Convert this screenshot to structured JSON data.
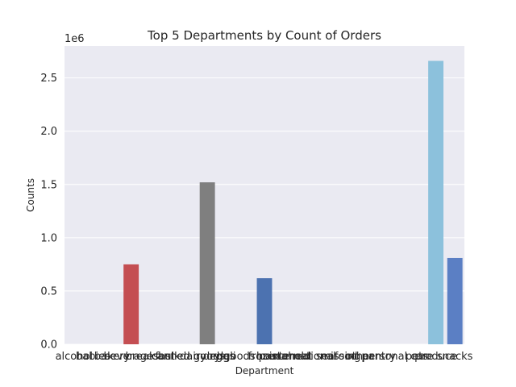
{
  "chart_data": {
    "type": "bar",
    "title": "Top 5 Departments by Count of Orders",
    "xlabel": "Department",
    "ylabel": "Counts",
    "y_multiplier": "1e6",
    "ylim": [
      0,
      2.8
    ],
    "yticks": [
      "0.0",
      "0.5",
      "1.0",
      "1.5",
      "2.0",
      "2.5"
    ],
    "grid": true,
    "categories": [
      "alcohol",
      "babies",
      "bakery",
      "beverages",
      "breakfast",
      "bulk",
      "canned goods",
      "dairy eggs",
      "deli",
      "dry goods pasta",
      "frozen",
      "household",
      "international",
      "meat seafood",
      "missing",
      "other",
      "pantry",
      "personal care",
      "pets",
      "produce",
      "snacks"
    ],
    "values": [
      0,
      0,
      0,
      0.75,
      0,
      0,
      0,
      1.52,
      0,
      0,
      0.62,
      0,
      0,
      0,
      0,
      0,
      0,
      0,
      0,
      2.66,
      0.81
    ],
    "colors": [
      "#4c72b0",
      "#dd8452",
      "#55a868",
      "#c44e52",
      "#8172b3",
      "#937860",
      "#da8bc3",
      "#7f7f7f",
      "#ccb974",
      "#64b5cd",
      "#4c72b0",
      "#dd8452",
      "#55a868",
      "#c44e52",
      "#8172b3",
      "#937860",
      "#da8bc3",
      "#7f7f7f",
      "#ccb974",
      "#8cc1dc",
      "#5b7fc4"
    ],
    "colors_note_dummy": ""
  }
}
